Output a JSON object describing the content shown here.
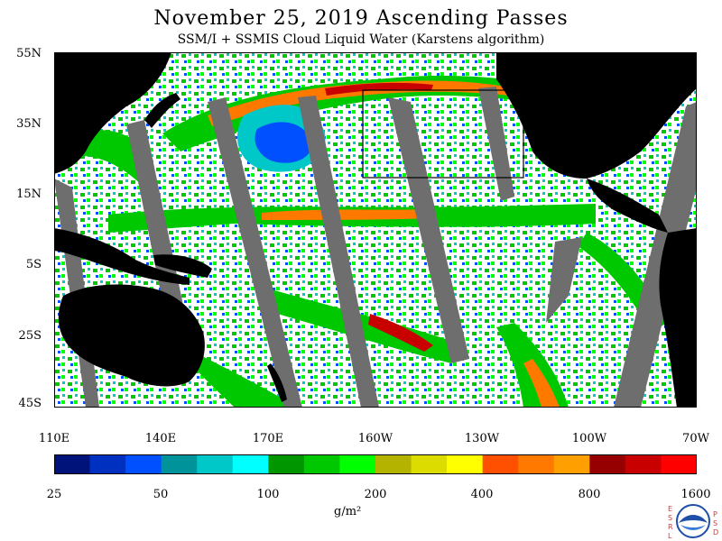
{
  "title": "November 25, 2019  Ascending Passes",
  "subtitle": "SSM/I + SSMIS Cloud Liquid Water (Karstens algorithm)",
  "lat_labels": [
    "55N",
    "35N",
    "15N",
    "5S",
    "25S",
    "45S"
  ],
  "lon_labels": [
    "110E",
    "140E",
    "170E",
    "160W",
    "130W",
    "100W",
    "70W"
  ],
  "colorbar": {
    "colors": [
      "#00137a",
      "#0030c0",
      "#0050ff",
      "#00949a",
      "#00c8c8",
      "#00ffff",
      "#009600",
      "#00c800",
      "#00ff00",
      "#b4b400",
      "#dcdc00",
      "#ffff00",
      "#ff5000",
      "#ff7800",
      "#ffa000",
      "#960000",
      "#c80000",
      "#ff0000"
    ],
    "labels": [
      "25",
      "50",
      "100",
      "200",
      "400",
      "800",
      "1600"
    ],
    "unit": "g/m²"
  },
  "logo": {
    "left_letters": [
      "E",
      "S",
      "R",
      "L"
    ],
    "right_letters": [
      "P",
      "S",
      "D"
    ],
    "name": "noaa-logo"
  },
  "colors": {
    "land": "#000000",
    "gap": "#6e6e6e",
    "ocean": "#ffffff",
    "frame": "#000000"
  }
}
